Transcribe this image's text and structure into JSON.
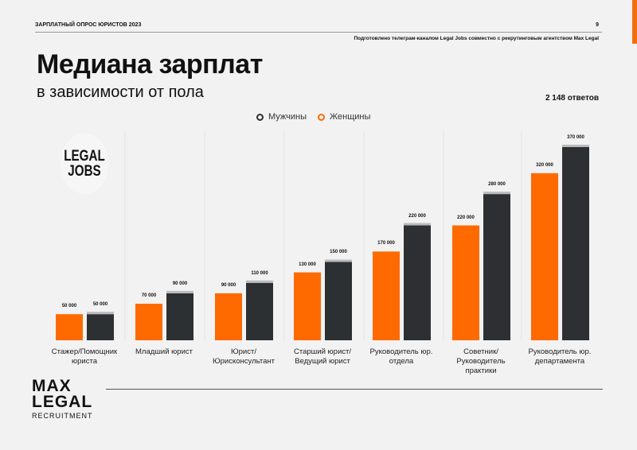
{
  "header": {
    "survey": "ЗАРПЛАТНЫЙ ОПРОС ЮРИСТОВ  2023",
    "page": "9",
    "prepared_by": "Подготовлено телеграм-каналом Legal Jobs совместно с рекрутинговым агентством Max Legal"
  },
  "logos": {
    "legal_jobs": "LEGAL JOBS",
    "max_legal": "MAX LEGAL",
    "max_legal_sub": "RECRUITMENT"
  },
  "colors": {
    "men": "#2d3033",
    "women": "#ff6a00",
    "accent": "#f07010"
  },
  "chart_data": {
    "type": "bar",
    "title": "Медиана зарплат",
    "subtitle": "в зависимости от пола",
    "responses": "2 148 ответов",
    "legend": [
      "Мужчины",
      "Женщины"
    ],
    "legend_position": "top",
    "categories": [
      "Стажер/Помощник юриста",
      "Младший юрист",
      "Юрист/ Юрисконсультант",
      "Старший юрист/ Ведущий юрист",
      "Руководитель юр. отдела",
      "Советник/ Руководитель практики",
      "Руководитель юр. департамента"
    ],
    "series": [
      {
        "name": "Женщины",
        "values": [
          50000,
          70000,
          90000,
          130000,
          170000,
          220000,
          320000
        ],
        "labels": [
          "50 000",
          "70 000",
          "90 000",
          "130 000",
          "170 000",
          "220 000",
          "320 000"
        ]
      },
      {
        "name": "Мужчины",
        "values": [
          50000,
          90000,
          110000,
          150000,
          220000,
          280000,
          370000
        ],
        "labels": [
          "50 000",
          "90 000",
          "110 000",
          "150 000",
          "220 000",
          "280 000",
          "370 000"
        ]
      }
    ],
    "ylim": [
      0,
      370000
    ],
    "grid": false
  }
}
